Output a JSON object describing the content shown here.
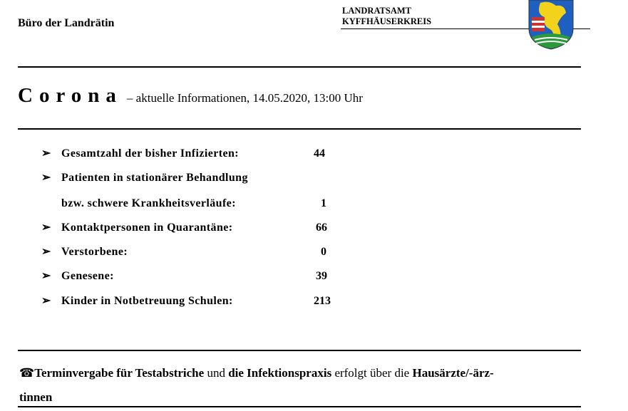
{
  "header": {
    "office": "Büro der Landrätin",
    "org_line1": "LANDRATSAMT",
    "org_line2": "KYFFHÄUSERKREIS",
    "logo": "coat-of-arms-kyffhaeuserkreis"
  },
  "title": {
    "main": "Corona",
    "subtitle": "– aktuelle Informationen,  14.05.2020, 13:00 Uhr"
  },
  "stats": [
    {
      "label": "Gesamtzahl der bisher Infizierten:",
      "value": "44"
    },
    {
      "label": "Patienten in stationärer Behandlung",
      "value": ""
    },
    {
      "label": "bzw. schwere Krankheitsverläufe:",
      "value": "1"
    },
    {
      "label": "Kontaktpersonen in Quarantäne:",
      "value": "66"
    },
    {
      "label": "Verstorbene:",
      "value": "0"
    },
    {
      "label": "Genesene:",
      "value": "39"
    },
    {
      "label": "Kinder in Notbetreuung Schulen:",
      "value": "213"
    }
  ],
  "bullet": "➢",
  "footer": {
    "icon": "telephone-icon",
    "phone_glyph": "☎",
    "part1": "Terminvergabe für Testabstriche",
    "part2": " und ",
    "part3": "die Infektionspraxis",
    "part4": " erfolgt über die ",
    "part5": "Hausärzte/-ärz-",
    "line2": "tinnen"
  }
}
